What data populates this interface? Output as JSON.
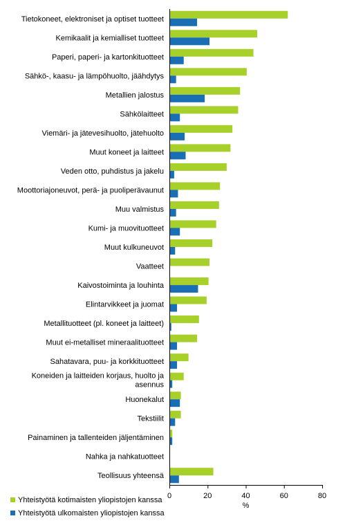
{
  "chart_data": {
    "type": "bar",
    "orientation": "horizontal",
    "categories": [
      "Tietokoneet, elektroniset ja optiset tuotteet",
      "Kemikaalit ja kemialliset tuotteet",
      "Paperi, paperi- ja kartonkituotteet",
      "Sähkö-, kaasu- ja lämpöhuolto, jäähdytys",
      "Metallien jalostus",
      "Sähkölaitteet",
      "Viemäri- ja jätevesihuolto, jätehuolto",
      "Muut koneet ja laitteet",
      "Veden otto, puhdistus ja jakelu",
      "Moottoriajoneuvot, perä- ja puoliperävaunut",
      "Muu valmistus",
      "Kumi- ja muovituotteet",
      "Muut kulkuneuvot",
      "Vaatteet",
      "Kaivostoiminta ja louhinta",
      "Elintarvikkeet ja juomat",
      "Metallituotteet (pl. koneet ja laitteet)",
      "Muut ei-metalliset mineraalituotteet",
      "Sahatavara, puu- ja korkkituotteet",
      "Koneiden ja laitteiden korjaus, huolto ja asennus",
      "Huonekalut",
      "Tekstiilit",
      "Painaminen ja tallenteiden jäljentäminen",
      "Nahka ja nahkatuotteet",
      "Teollisuus yhteensä"
    ],
    "series": [
      {
        "name": "Yhteistyötä kotimaisten yliopistojen kanssa",
        "color": "#a8d02a",
        "values": [
          62,
          46,
          44,
          40.5,
          37,
          36,
          33,
          32,
          30,
          26.5,
          26,
          24.5,
          22.5,
          21,
          20.5,
          19.5,
          15.5,
          14.5,
          10,
          7.5,
          6,
          6,
          1.5,
          0,
          23
        ]
      },
      {
        "name": "Yhteistyötä ulkomaisten yliopistojen kanssa",
        "color": "#1a6fb4",
        "values": [
          14.5,
          21,
          7.5,
          3.5,
          18.5,
          5.5,
          8,
          8.5,
          2.5,
          4.5,
          3.5,
          5.5,
          3,
          0,
          15,
          4,
          1,
          4,
          4,
          1.5,
          5.5,
          3,
          1.5,
          0,
          5
        ]
      }
    ],
    "xlabel": "%",
    "xlim": [
      0,
      80
    ],
    "xticks": [
      0,
      20,
      40,
      60,
      80
    ],
    "grid": false,
    "legend_position": "bottom-left"
  }
}
